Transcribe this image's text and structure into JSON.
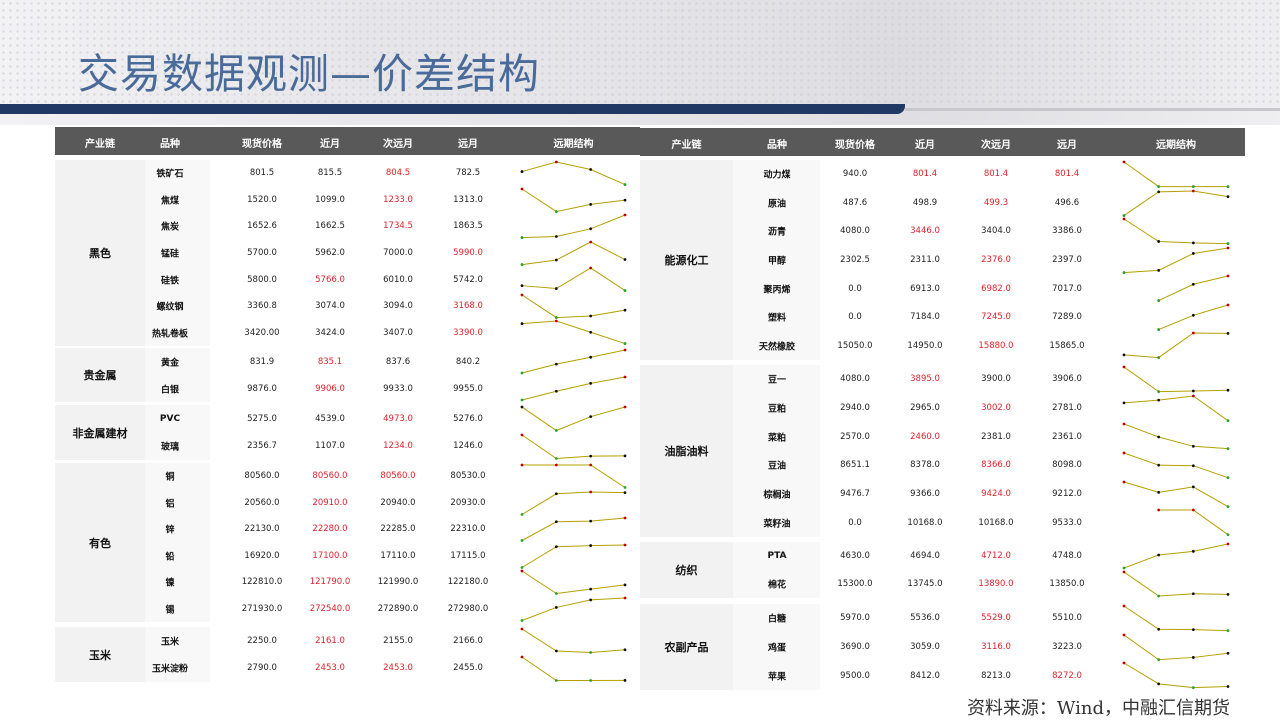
{
  "title": "交易数据观测—价差结构",
  "footer": "资料来源：Wind，中融汇信期货",
  "headers": [
    "产业链",
    "品种",
    "现货价格",
    "近月",
    "次远月",
    "远月",
    "远期结构"
  ],
  "colors": {
    "header_bg": "#595959",
    "title": "#4a6a9a",
    "bar": "#1f3864",
    "highlight": "#e0202a",
    "spark_line": "#b5a000",
    "spark_max": "#c00000",
    "spark_min": "#2ca02c"
  },
  "left_table": [
    {
      "group": "黑色",
      "rows": [
        {
          "name": "铁矿石",
          "values": [
            "801.5",
            "815.5",
            "804.5",
            "782.5"
          ],
          "red": [
            2
          ]
        },
        {
          "name": "焦煤",
          "values": [
            "1520.0",
            "1099.0",
            "1233.0",
            "1313.0"
          ],
          "red": [
            2
          ]
        },
        {
          "name": "焦炭",
          "values": [
            "1652.6",
            "1662.5",
            "1734.5",
            "1863.5"
          ],
          "red": [
            2
          ]
        },
        {
          "name": "锰硅",
          "values": [
            "5700.0",
            "5962.0",
            "7000.0",
            "5990.0"
          ],
          "red": [
            3
          ]
        },
        {
          "name": "硅铁",
          "values": [
            "5800.0",
            "5766.0",
            "6010.0",
            "5742.0"
          ],
          "red": [
            1
          ]
        },
        {
          "name": "螺纹钢",
          "values": [
            "3360.8",
            "3074.0",
            "3094.0",
            "3168.0"
          ],
          "red": [
            3
          ]
        },
        {
          "name": "热轧卷板",
          "values": [
            "3420.00",
            "3424.0",
            "3407.0",
            "3390.0"
          ],
          "red": [
            3
          ]
        }
      ]
    },
    {
      "group": "贵金属",
      "rows": [
        {
          "name": "黄金",
          "values": [
            "831.9",
            "835.1",
            "837.6",
            "840.2"
          ],
          "red": [
            1
          ]
        },
        {
          "name": "白银",
          "values": [
            "9876.0",
            "9906.0",
            "9933.0",
            "9955.0"
          ],
          "red": [
            1
          ]
        }
      ]
    },
    {
      "group": "非金属建材",
      "rows": [
        {
          "name": "PVC",
          "values": [
            "5275.0",
            "4539.0",
            "4973.0",
            "5276.0"
          ],
          "red": [
            2
          ]
        },
        {
          "name": "玻璃",
          "values": [
            "2356.7",
            "1107.0",
            "1234.0",
            "1246.0"
          ],
          "red": [
            2
          ]
        }
      ]
    },
    {
      "group": "有色",
      "rows": [
        {
          "name": "铜",
          "values": [
            "80560.0",
            "80560.0",
            "80560.0",
            "80530.0"
          ],
          "red": [
            1,
            2
          ]
        },
        {
          "name": "铝",
          "values": [
            "20560.0",
            "20910.0",
            "20940.0",
            "20930.0"
          ],
          "red": [
            1
          ]
        },
        {
          "name": "锌",
          "values": [
            "22130.0",
            "22280.0",
            "22285.0",
            "22310.0"
          ],
          "red": [
            1
          ]
        },
        {
          "name": "铅",
          "values": [
            "16920.0",
            "17100.0",
            "17110.0",
            "17115.0"
          ],
          "red": [
            1
          ]
        },
        {
          "name": "镍",
          "values": [
            "122810.0",
            "121790.0",
            "121990.0",
            "122180.0"
          ],
          "red": [
            1
          ]
        },
        {
          "name": "锡",
          "values": [
            "271930.0",
            "272540.0",
            "272890.0",
            "272980.0"
          ],
          "red": [
            1
          ]
        }
      ]
    },
    {
      "group": "玉米",
      "rows": [
        {
          "name": "玉米",
          "values": [
            "2250.0",
            "2161.0",
            "2155.0",
            "2166.0"
          ],
          "red": [
            1
          ]
        },
        {
          "name": "玉米淀粉",
          "values": [
            "2790.0",
            "2453.0",
            "2453.0",
            "2455.0"
          ],
          "red": [
            1,
            2
          ]
        }
      ]
    }
  ],
  "right_table": [
    {
      "group": "能源化工",
      "rows": [
        {
          "name": "动力煤",
          "values": [
            "940.0",
            "801.4",
            "801.4",
            "801.4"
          ],
          "red": [
            1,
            2,
            3
          ]
        },
        {
          "name": "原油",
          "values": [
            "487.6",
            "498.9",
            "499.3",
            "496.6"
          ],
          "red": [
            2
          ]
        },
        {
          "name": "沥青",
          "values": [
            "4080.0",
            "3446.0",
            "3404.0",
            "3386.0"
          ],
          "red": [
            1
          ]
        },
        {
          "name": "甲醇",
          "values": [
            "2302.5",
            "2311.0",
            "2376.0",
            "2397.0"
          ],
          "red": [
            2
          ]
        },
        {
          "name": "聚丙烯",
          "values": [
            "0.0",
            "6913.0",
            "6982.0",
            "7017.0"
          ],
          "red": [
            2
          ]
        },
        {
          "name": "塑料",
          "values": [
            "0.0",
            "7184.0",
            "7245.0",
            "7289.0"
          ],
          "red": [
            2
          ]
        },
        {
          "name": "天然橡胶",
          "values": [
            "15050.0",
            "14950.0",
            "15880.0",
            "15865.0"
          ],
          "red": [
            2
          ]
        }
      ]
    },
    {
      "group": "油脂油料",
      "rows": [
        {
          "name": "豆一",
          "values": [
            "4080.0",
            "3895.0",
            "3900.0",
            "3906.0"
          ],
          "red": [
            1
          ]
        },
        {
          "name": "豆粕",
          "values": [
            "2940.0",
            "2965.0",
            "3002.0",
            "2781.0"
          ],
          "red": [
            2
          ]
        },
        {
          "name": "菜粕",
          "values": [
            "2570.0",
            "2460.0",
            "2381.0",
            "2361.0"
          ],
          "red": [
            1
          ]
        },
        {
          "name": "豆油",
          "values": [
            "8651.1",
            "8378.0",
            "8366.0",
            "8098.0"
          ],
          "red": [
            2
          ]
        },
        {
          "name": "棕榈油",
          "values": [
            "9476.7",
            "9366.0",
            "9424.0",
            "9212.0"
          ],
          "red": [
            2
          ]
        },
        {
          "name": "菜籽油",
          "values": [
            "0.0",
            "10168.0",
            "10168.0",
            "9533.0"
          ],
          "red": []
        }
      ]
    },
    {
      "group": "纺织",
      "rows": [
        {
          "name": "PTA",
          "values": [
            "4630.0",
            "4694.0",
            "4712.0",
            "4748.0"
          ],
          "red": [
            2
          ]
        },
        {
          "name": "棉花",
          "values": [
            "15300.0",
            "13745.0",
            "13890.0",
            "13850.0"
          ],
          "red": [
            2
          ]
        }
      ]
    },
    {
      "group": "农副产品",
      "rows": [
        {
          "name": "白糖",
          "values": [
            "5970.0",
            "5536.0",
            "5529.0",
            "5510.0"
          ],
          "red": [
            2
          ]
        },
        {
          "name": "鸡蛋",
          "values": [
            "3690.0",
            "3059.0",
            "3116.0",
            "3223.0"
          ],
          "red": [
            2
          ]
        },
        {
          "name": "苹果",
          "values": [
            "9500.0",
            "8412.0",
            "8213.0",
            "8272.0"
          ],
          "red": [
            3
          ]
        }
      ]
    }
  ]
}
